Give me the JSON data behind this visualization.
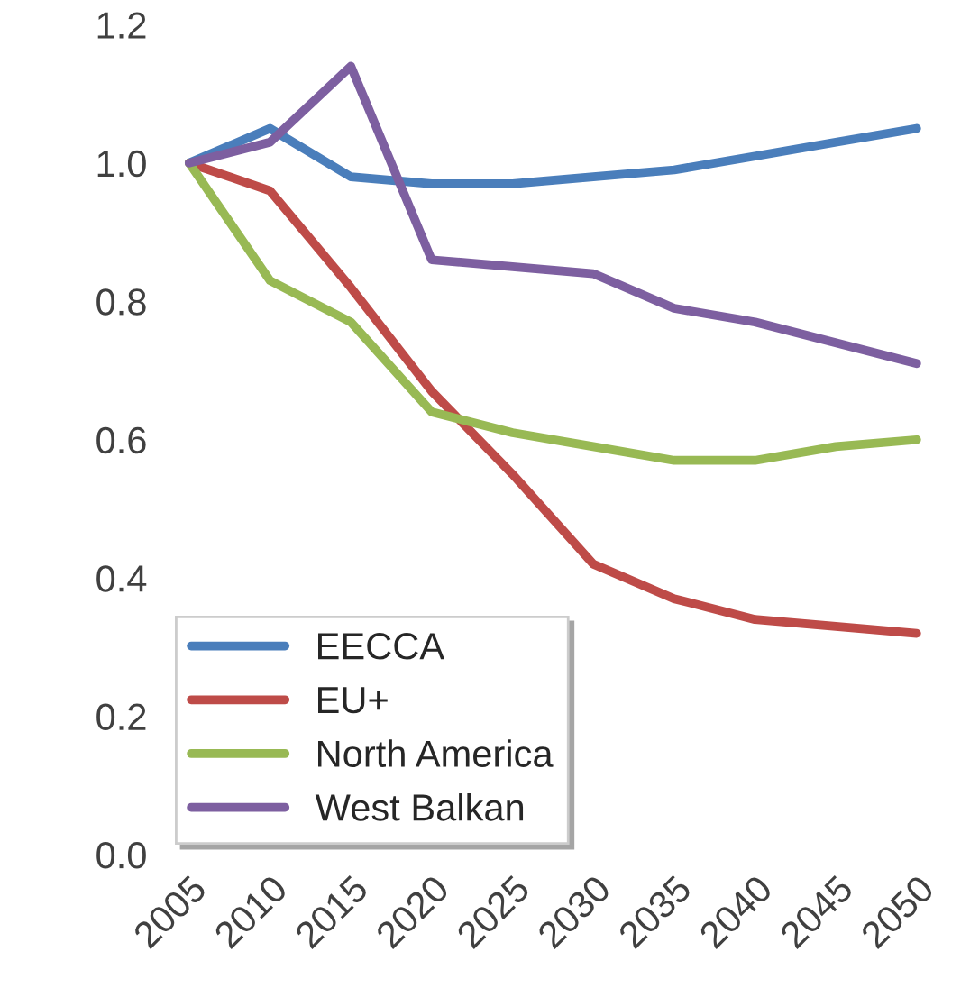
{
  "chart_data": {
    "type": "line",
    "categories": [
      "2005",
      "2010",
      "2015",
      "2020",
      "2025",
      "2030",
      "2035",
      "2040",
      "2045",
      "2050"
    ],
    "series": [
      {
        "name": "EECCA",
        "color": "#4a7ebb",
        "values": [
          1.0,
          1.05,
          0.98,
          0.97,
          0.97,
          0.98,
          0.99,
          1.01,
          1.03,
          1.05
        ]
      },
      {
        "name": "EU+",
        "color": "#be4b48",
        "values": [
          1.0,
          0.96,
          0.82,
          0.67,
          0.55,
          0.42,
          0.37,
          0.34,
          0.33,
          0.32
        ]
      },
      {
        "name": "North America",
        "color": "#98b954",
        "values": [
          1.0,
          0.83,
          0.77,
          0.64,
          0.61,
          0.59,
          0.57,
          0.57,
          0.59,
          0.6
        ]
      },
      {
        "name": "West Balkan",
        "color": "#7d5fa0",
        "values": [
          1.0,
          1.03,
          1.14,
          0.86,
          0.85,
          0.84,
          0.79,
          0.77,
          0.74,
          0.71
        ]
      }
    ],
    "ylim": [
      0,
      1.2
    ],
    "yticks": [
      {
        "value": 0,
        "label": "0.0"
      },
      {
        "value": 0.2,
        "label": "0.2"
      },
      {
        "value": 0.4,
        "label": "0.4"
      },
      {
        "value": 0.6,
        "label": "0.6"
      },
      {
        "value": 0.8,
        "label": "0.8"
      },
      {
        "value": 1.0,
        "label": "1.0"
      },
      {
        "value": 1.2,
        "label": "1.2"
      }
    ],
    "grid": false,
    "legend": "bottom left",
    "marker": "none",
    "line_style": "solid"
  }
}
